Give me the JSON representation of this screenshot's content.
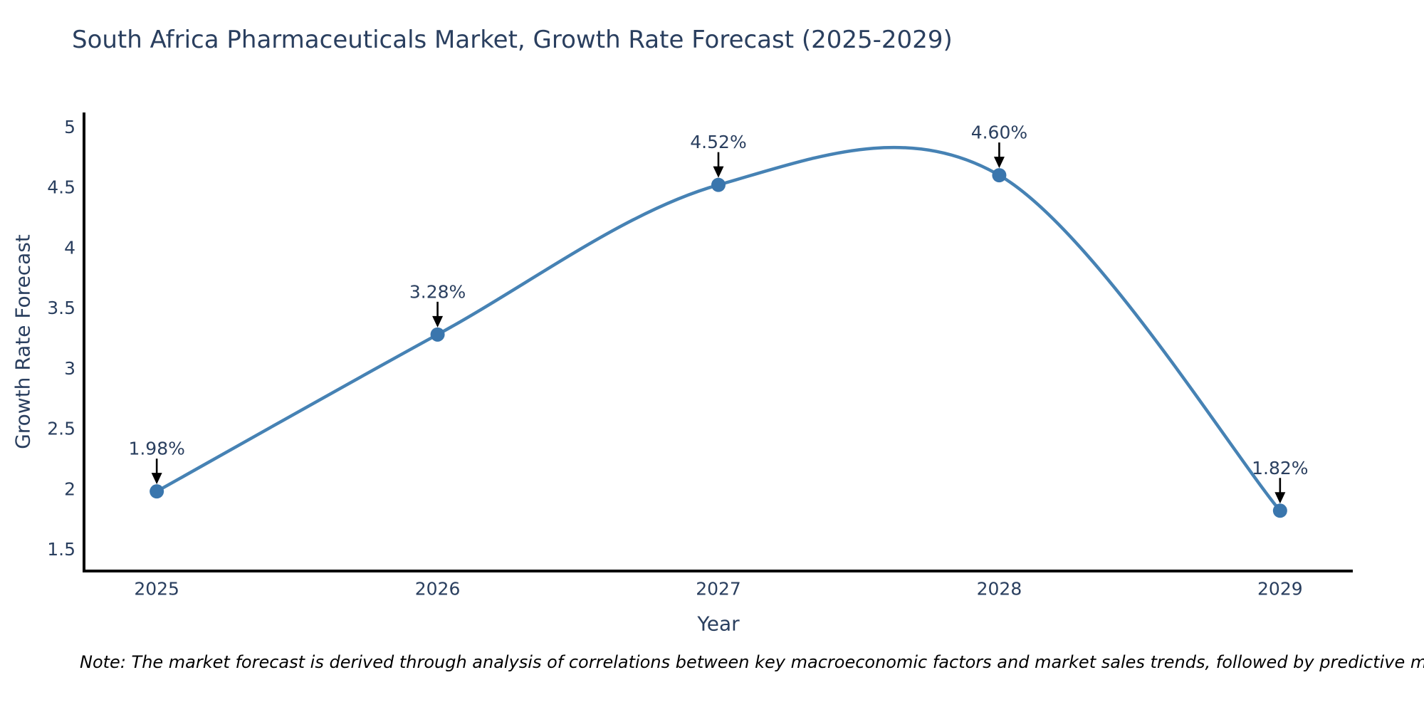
{
  "page": {
    "background": "#ffffff"
  },
  "chart_data": {
    "type": "line",
    "title": "South Africa Pharmaceuticals Market, Growth Rate Forecast (2025-2029)",
    "xlabel": "Year",
    "ylabel": "Growth Rate Forecast",
    "categories": [
      2025,
      2026,
      2027,
      2028,
      2029
    ],
    "values": [
      1.98,
      3.28,
      4.52,
      4.6,
      1.82
    ],
    "point_labels": [
      "1.98%",
      "3.28%",
      "4.52%",
      "4.60%",
      "1.82%"
    ],
    "yticks": [
      1.5,
      2,
      2.5,
      3,
      3.5,
      4,
      4.5,
      5
    ],
    "xlim": [
      2024.741,
      2029.259
    ],
    "ylim": [
      1.32,
      5.12
    ],
    "grid": false,
    "legend_position": "none",
    "line_shape": "spline",
    "marker": "circle",
    "annotation_style": "black-down-arrow",
    "colors": {
      "line": "#4682b4",
      "marker": "#3a76ad",
      "title_text": "#2a3f5f",
      "tick_text": "#2a3f5f",
      "label_text": "#2a3f5f",
      "axis_line": "#000000",
      "arrow": "#000000"
    },
    "note": "Note: The market forecast is derived through analysis of correlations between key macroeconomic factors and market sales trends, followed by predictive modeling to project future sales"
  }
}
